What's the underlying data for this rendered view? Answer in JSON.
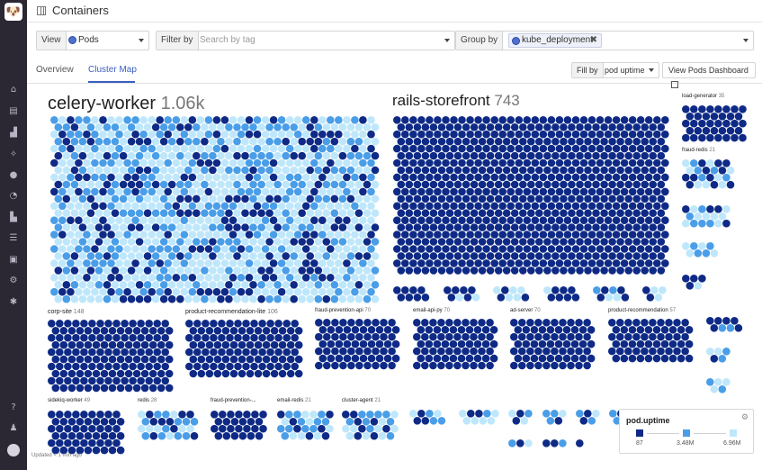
{
  "colors": {
    "low": "#0e2a86",
    "mid": "#4a9ee8",
    "high": "#bfe7fb",
    "accent": "#3a5fbf",
    "sidebar_bg": "#2b2733"
  },
  "header": {
    "title": "Containers",
    "icon": "containers-icon"
  },
  "sidebar": {
    "logo": "datadog-logo",
    "items": [
      "home-icon",
      "list-icon",
      "chart-icon",
      "integrations-icon",
      "monitors-icon",
      "dashboard-icon",
      "infrastructure-icon",
      "logs-icon",
      "apm-icon",
      "security-icon",
      "settings-icon"
    ],
    "bottom": [
      "help-icon",
      "team-icon",
      "user-avatar"
    ]
  },
  "filters": {
    "view_label": "View",
    "view_value": "Pods",
    "filter_label": "Filter by",
    "filter_placeholder": "Search by tag",
    "group_label": "Group by",
    "group_chip": "kube_deployment",
    "group_chip_remove": "✖"
  },
  "tabs": [
    {
      "label": "Overview"
    },
    {
      "label": "Cluster Map"
    }
  ],
  "toolbar": {
    "fill_label": "Fill by",
    "fill_value": "pod uptime",
    "dashboard_button": "View Pods Dashboard"
  },
  "groups": [
    {
      "name": "celery-worker",
      "count": "1.06k"
    },
    {
      "name": "rails-storefront",
      "count": "743"
    },
    {
      "name": "load-generator",
      "count": "35"
    },
    {
      "name": "fraud-redis",
      "count": "21"
    },
    {
      "name": "corp-site",
      "count": "148"
    },
    {
      "name": "product-recommendation-lite",
      "count": "106"
    },
    {
      "name": "fraud-prevention-api",
      "count": "70"
    },
    {
      "name": "email-api-py",
      "count": "70"
    },
    {
      "name": "ad-server",
      "count": "70"
    },
    {
      "name": "product-recommendation",
      "count": "57"
    },
    {
      "name": "sidekiq-worker",
      "count": "49"
    },
    {
      "name": "redis",
      "count": "28"
    },
    {
      "name": "fraud-prevention-...",
      "count": ""
    },
    {
      "name": "email-redis",
      "count": "21"
    },
    {
      "name": "cluster-agent",
      "count": "21"
    }
  ],
  "legend": {
    "title": "pod.uptime",
    "min": "87",
    "mid": "3.48M",
    "max": "6.96M"
  },
  "footer": {
    "updated": "Updated < 1 min ago"
  }
}
